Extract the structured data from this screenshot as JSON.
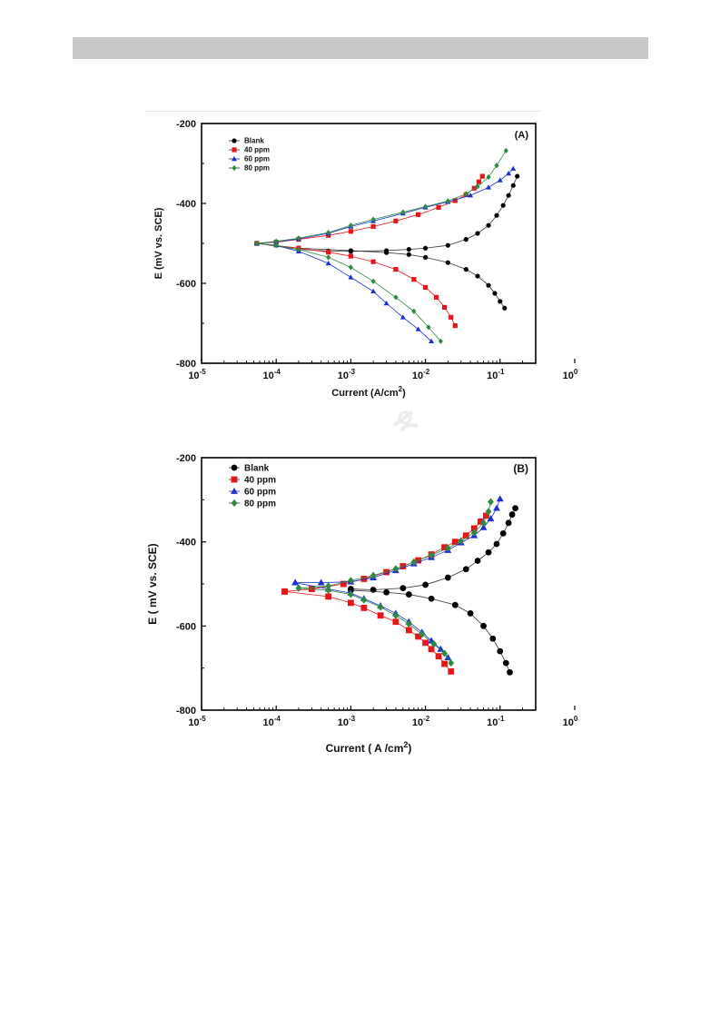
{
  "header_bar": {
    "color": "#c8c8c8"
  },
  "chart_data": [
    {
      "type": "scatter",
      "panel_label": "(A)",
      "xlabel": "Current (A/cm",
      "xlabel_sup": "2",
      "xlabel_end": ")",
      "ylabel": "E (mV vs. SCE)",
      "x_scale": "log",
      "xlim": [
        1e-05,
        0.3
      ],
      "ylim": [
        -800,
        -200
      ],
      "x_ticks": [
        {
          "v": 1e-05,
          "base": "10",
          "exp": "-5"
        },
        {
          "v": 0.0001,
          "base": "10",
          "exp": "-4"
        },
        {
          "v": 0.001,
          "base": "10",
          "exp": "-3"
        },
        {
          "v": 0.01,
          "base": "10",
          "exp": "-2"
        },
        {
          "v": 0.1,
          "base": "10",
          "exp": "-1"
        },
        {
          "v": 1,
          "base": "10",
          "exp": "0"
        }
      ],
      "y_ticks": [
        -200,
        -400,
        -600,
        -800
      ],
      "y_tick_labels": [
        "-200",
        "-400",
        "-600",
        "-800"
      ],
      "legend_position": "top-left",
      "series": [
        {
          "name": "Blank",
          "color": "#000000",
          "marker": "circle",
          "anodic": [
            [
              5.5e-05,
              -500
            ],
            [
              0.0002,
              -515
            ],
            [
              0.0005,
              -519
            ],
            [
              0.001,
              -520
            ],
            [
              0.003,
              -518
            ],
            [
              0.006,
              -515
            ],
            [
              0.01,
              -512
            ],
            [
              0.02,
              -505
            ],
            [
              0.035,
              -490
            ],
            [
              0.05,
              -475
            ],
            [
              0.07,
              -455
            ],
            [
              0.09,
              -430
            ],
            [
              0.11,
              -405
            ],
            [
              0.13,
              -380
            ],
            [
              0.15,
              -355
            ],
            [
              0.17,
              -332
            ]
          ],
          "cathodic": [
            [
              5.5e-05,
              -500
            ],
            [
              0.0002,
              -512
            ],
            [
              0.001,
              -518
            ],
            [
              0.003,
              -523
            ],
            [
              0.006,
              -528
            ],
            [
              0.01,
              -535
            ],
            [
              0.02,
              -548
            ],
            [
              0.035,
              -565
            ],
            [
              0.05,
              -582
            ],
            [
              0.07,
              -605
            ],
            [
              0.085,
              -625
            ],
            [
              0.1,
              -645
            ],
            [
              0.115,
              -662
            ]
          ]
        },
        {
          "name": "40 ppm",
          "color": "#e8151b",
          "marker": "square",
          "anodic": [
            [
              5.5e-05,
              -500
            ],
            [
              0.0001,
              -497
            ],
            [
              0.0002,
              -490
            ],
            [
              0.0005,
              -480
            ],
            [
              0.001,
              -470
            ],
            [
              0.002,
              -458
            ],
            [
              0.004,
              -444
            ],
            [
              0.008,
              -428
            ],
            [
              0.015,
              -410
            ],
            [
              0.025,
              -393
            ],
            [
              0.035,
              -378
            ],
            [
              0.045,
              -362
            ],
            [
              0.052,
              -346
            ],
            [
              0.058,
              -332
            ]
          ],
          "cathodic": [
            [
              5.5e-05,
              -500
            ],
            [
              0.0002,
              -512
            ],
            [
              0.0005,
              -522
            ],
            [
              0.001,
              -532
            ],
            [
              0.002,
              -546
            ],
            [
              0.004,
              -565
            ],
            [
              0.007,
              -590
            ],
            [
              0.01,
              -610
            ],
            [
              0.014,
              -635
            ],
            [
              0.018,
              -660
            ],
            [
              0.022,
              -685
            ],
            [
              0.025,
              -706
            ]
          ]
        },
        {
          "name": "60 ppm",
          "color": "#1a2fd4",
          "marker": "triangle",
          "anodic": [
            [
              5.5e-05,
              -500
            ],
            [
              0.0001,
              -496
            ],
            [
              0.0002,
              -489
            ],
            [
              0.0005,
              -475
            ],
            [
              0.001,
              -458
            ],
            [
              0.002,
              -444
            ],
            [
              0.005,
              -425
            ],
            [
              0.01,
              -410
            ],
            [
              0.02,
              -396
            ],
            [
              0.04,
              -380
            ],
            [
              0.07,
              -360
            ],
            [
              0.1,
              -342
            ],
            [
              0.13,
              -325
            ],
            [
              0.15,
              -313
            ]
          ],
          "cathodic": [
            [
              5.5e-05,
              -500
            ],
            [
              0.0001,
              -505
            ],
            [
              0.0002,
              -520
            ],
            [
              0.0005,
              -550
            ],
            [
              0.001,
              -585
            ],
            [
              0.002,
              -620
            ],
            [
              0.003,
              -650
            ],
            [
              0.005,
              -685
            ],
            [
              0.008,
              -715
            ],
            [
              0.012,
              -745
            ]
          ]
        },
        {
          "name": "80 ppm",
          "color": "#2d8a3e",
          "marker": "diamond",
          "anodic": [
            [
              5.5e-05,
              -500
            ],
            [
              0.0001,
              -495
            ],
            [
              0.0002,
              -487
            ],
            [
              0.0005,
              -473
            ],
            [
              0.001,
              -455
            ],
            [
              0.002,
              -440
            ],
            [
              0.005,
              -422
            ],
            [
              0.01,
              -408
            ],
            [
              0.02,
              -394
            ],
            [
              0.035,
              -376
            ],
            [
              0.05,
              -358
            ],
            [
              0.07,
              -334
            ],
            [
              0.09,
              -305
            ],
            [
              0.12,
              -268
            ]
          ],
          "cathodic": [
            [
              5.5e-05,
              -500
            ],
            [
              0.0001,
              -505
            ],
            [
              0.0002,
              -515
            ],
            [
              0.0005,
              -535
            ],
            [
              0.001,
              -560
            ],
            [
              0.002,
              -595
            ],
            [
              0.004,
              -635
            ],
            [
              0.007,
              -670
            ],
            [
              0.011,
              -710
            ],
            [
              0.016,
              -745
            ]
          ]
        }
      ]
    },
    {
      "type": "scatter",
      "panel_label": "(B)",
      "xlabel": "Current ( A /cm",
      "xlabel_sup": "2",
      "xlabel_end": ")",
      "ylabel": "E ( mV vs. SCE)",
      "x_scale": "log",
      "xlim": [
        1e-05,
        0.3
      ],
      "ylim": [
        -800,
        -200
      ],
      "x_ticks": [
        {
          "v": 1e-05,
          "base": "10",
          "exp": "-5"
        },
        {
          "v": 0.0001,
          "base": "10",
          "exp": "-4"
        },
        {
          "v": 0.001,
          "base": "10",
          "exp": "-3"
        },
        {
          "v": 0.01,
          "base": "10",
          "exp": "-2"
        },
        {
          "v": 0.1,
          "base": "10",
          "exp": "-1"
        },
        {
          "v": 1,
          "base": "10",
          "exp": "0"
        }
      ],
      "y_ticks": [
        -200,
        -400,
        -600,
        -800
      ],
      "y_tick_labels": [
        "-200",
        "-400",
        "-600",
        "-800"
      ],
      "legend_position": "top-left",
      "series": [
        {
          "name": "Blank",
          "color": "#000000",
          "marker": "circle",
          "anodic": [
            [
              0.001,
              -512
            ],
            [
              0.002,
              -514
            ],
            [
              0.005,
              -510
            ],
            [
              0.01,
              -502
            ],
            [
              0.02,
              -485
            ],
            [
              0.035,
              -465
            ],
            [
              0.05,
              -445
            ],
            [
              0.07,
              -425
            ],
            [
              0.09,
              -405
            ],
            [
              0.11,
              -380
            ],
            [
              0.13,
              -355
            ],
            [
              0.145,
              -335
            ],
            [
              0.16,
              -320
            ]
          ],
          "cathodic": [
            [
              0.001,
              -515
            ],
            [
              0.003,
              -520
            ],
            [
              0.006,
              -525
            ],
            [
              0.012,
              -535
            ],
            [
              0.025,
              -550
            ],
            [
              0.04,
              -570
            ],
            [
              0.06,
              -600
            ],
            [
              0.08,
              -630
            ],
            [
              0.1,
              -660
            ],
            [
              0.12,
              -688
            ],
            [
              0.135,
              -710
            ]
          ]
        },
        {
          "name": "40 ppm",
          "color": "#e8151b",
          "marker": "square",
          "anodic": [
            [
              0.00013,
              -518
            ],
            [
              0.0003,
              -512
            ],
            [
              0.0008,
              -500
            ],
            [
              0.0015,
              -488
            ],
            [
              0.003,
              -472
            ],
            [
              0.005,
              -458
            ],
            [
              0.008,
              -444
            ],
            [
              0.012,
              -430
            ],
            [
              0.018,
              -413
            ],
            [
              0.025,
              -400
            ],
            [
              0.035,
              -385
            ],
            [
              0.045,
              -368
            ],
            [
              0.055,
              -352
            ],
            [
              0.065,
              -338
            ]
          ],
          "cathodic": [
            [
              0.00013,
              -518
            ],
            [
              0.0005,
              -530
            ],
            [
              0.001,
              -545
            ],
            [
              0.0015,
              -557
            ],
            [
              0.0025,
              -575
            ],
            [
              0.004,
              -590
            ],
            [
              0.006,
              -610
            ],
            [
              0.008,
              -625
            ],
            [
              0.01,
              -640
            ],
            [
              0.012,
              -655
            ],
            [
              0.015,
              -672
            ],
            [
              0.018,
              -690
            ],
            [
              0.022,
              -708
            ]
          ]
        },
        {
          "name": "60 ppm",
          "color": "#1a2fd4",
          "marker": "triangle",
          "anodic": [
            [
              0.00018,
              -497
            ],
            [
              0.0004,
              -497
            ],
            [
              0.001,
              -495
            ],
            [
              0.002,
              -485
            ],
            [
              0.004,
              -468
            ],
            [
              0.007,
              -452
            ],
            [
              0.012,
              -437
            ],
            [
              0.02,
              -420
            ],
            [
              0.03,
              -402
            ],
            [
              0.045,
              -385
            ],
            [
              0.06,
              -366
            ],
            [
              0.075,
              -345
            ],
            [
              0.09,
              -320
            ],
            [
              0.1,
              -298
            ]
          ],
          "cathodic": [
            [
              0.00018,
              -497
            ],
            [
              0.0005,
              -512
            ],
            [
              0.001,
              -522
            ],
            [
              0.0015,
              -535
            ],
            [
              0.0025,
              -552
            ],
            [
              0.004,
              -570
            ],
            [
              0.006,
              -590
            ],
            [
              0.009,
              -615
            ],
            [
              0.012,
              -635
            ],
            [
              0.016,
              -655
            ],
            [
              0.02,
              -675
            ]
          ]
        },
        {
          "name": "80 ppm",
          "color": "#2d8a3e",
          "marker": "diamond",
          "anodic": [
            [
              0.0002,
              -510
            ],
            [
              0.0005,
              -505
            ],
            [
              0.001,
              -492
            ],
            [
              0.002,
              -480
            ],
            [
              0.004,
              -464
            ],
            [
              0.007,
              -448
            ],
            [
              0.012,
              -432
            ],
            [
              0.02,
              -415
            ],
            [
              0.03,
              -398
            ],
            [
              0.045,
              -378
            ],
            [
              0.06,
              -355
            ],
            [
              0.07,
              -328
            ],
            [
              0.075,
              -305
            ]
          ],
          "cathodic": [
            [
              0.0002,
              -510
            ],
            [
              0.0005,
              -515
            ],
            [
              0.001,
              -525
            ],
            [
              0.0015,
              -538
            ],
            [
              0.0025,
              -555
            ],
            [
              0.004,
              -575
            ],
            [
              0.006,
              -595
            ],
            [
              0.009,
              -620
            ],
            [
              0.013,
              -643
            ],
            [
              0.018,
              -665
            ],
            [
              0.022,
              -688
            ]
          ]
        }
      ]
    }
  ]
}
